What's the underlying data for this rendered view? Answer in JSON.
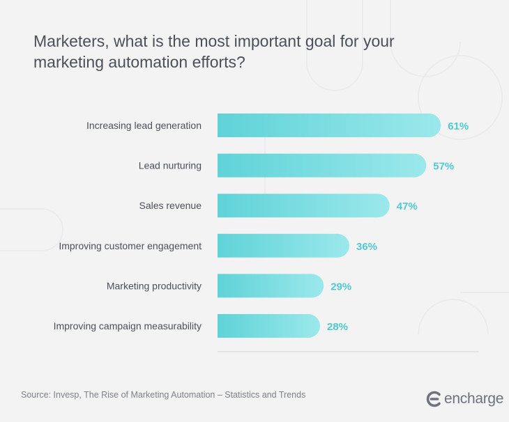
{
  "title": "Marketers, what is the most important goal for your marketing automation efforts?",
  "source": "Source: Invesp, The Rise of Marketing Automation – Statistics and Trends",
  "brand": {
    "name": "encharge",
    "icon": "encharge-logo-icon"
  },
  "colors": {
    "background": "#f3f3f4",
    "bar_start": "#5fd3d8",
    "bar_end": "#9be8eb",
    "value_label": "#4ecbd1",
    "category_label": "#4b5058",
    "baseline": "#d4d4d6"
  },
  "chart_data": {
    "type": "bar",
    "orientation": "horizontal",
    "title": "Marketers, what is the most important goal for your marketing automation efforts?",
    "categories": [
      "Increasing lead generation",
      "Lead nurturing",
      "Sales revenue",
      "Improving customer engagement",
      "Marketing productivity",
      "Improving campaign measurability"
    ],
    "values": [
      61,
      57,
      47,
      36,
      29,
      28
    ],
    "value_labels": [
      "61%",
      "57%",
      "47%",
      "36%",
      "29%",
      "28%"
    ],
    "unit": "%",
    "xlim": [
      0,
      100
    ],
    "grid": false,
    "legend": "none"
  }
}
